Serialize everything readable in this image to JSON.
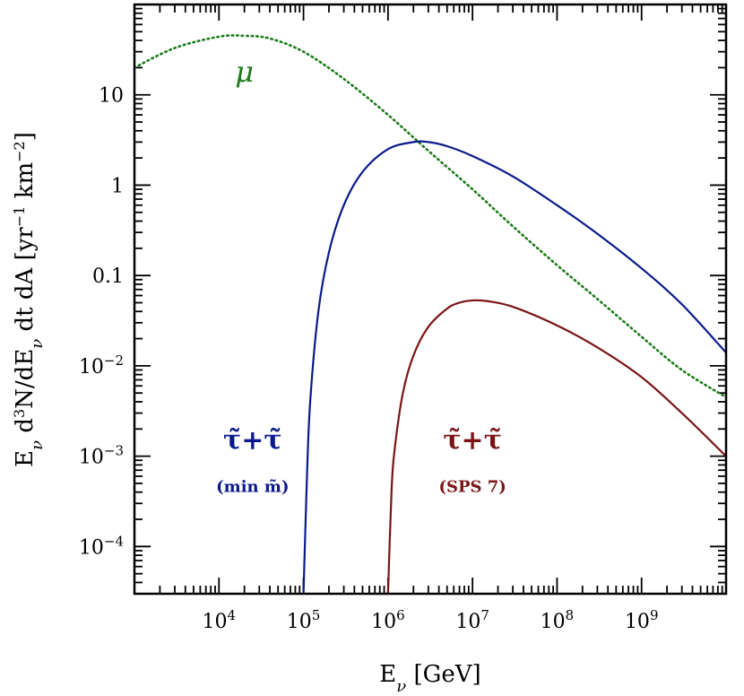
{
  "chart_data": {
    "type": "line",
    "xscale": "log",
    "yscale": "log",
    "xlim": [
      1000,
      10000000000
    ],
    "ylim": [
      3e-05,
      100
    ],
    "xlabel": "E_ν [GeV]",
    "ylabel": "E_ν d³N/dE_ν dt dA [yr⁻¹ km⁻²]",
    "x_ticks": [
      {
        "value": 10000,
        "base": "10",
        "exp": "4"
      },
      {
        "value": 100000,
        "base": "10",
        "exp": "5"
      },
      {
        "value": 1000000,
        "base": "10",
        "exp": "6"
      },
      {
        "value": 10000000,
        "base": "10",
        "exp": "7"
      },
      {
        "value": 100000000,
        "base": "10",
        "exp": "8"
      },
      {
        "value": 1000000000,
        "base": "10",
        "exp": "9"
      }
    ],
    "y_ticks": [
      {
        "value": 0.0001,
        "base": "10",
        "exp": "−4"
      },
      {
        "value": 0.001,
        "base": "10",
        "exp": "−3"
      },
      {
        "value": 0.01,
        "base": "10",
        "exp": "−2"
      },
      {
        "value": 0.1,
        "base": "0.1",
        "exp": ""
      },
      {
        "value": 1,
        "base": "1",
        "exp": ""
      },
      {
        "value": 10,
        "base": "10",
        "exp": ""
      }
    ],
    "series": [
      {
        "name": "μ",
        "color": "#1a7a1a",
        "style": "dotted",
        "x": [
          1000,
          3000,
          10000,
          20000,
          40000,
          100000,
          300000,
          1000000,
          3000000,
          10000000,
          30000000,
          100000000,
          300000000,
          1000000000,
          3000000000,
          10000000000
        ],
        "y": [
          20,
          33,
          44,
          45,
          42,
          30,
          15,
          6,
          2.4,
          0.9,
          0.35,
          0.13,
          0.055,
          0.021,
          0.009,
          0.0045
        ]
      },
      {
        "name": "τ̃+τ̃ (min m̃)",
        "color": "#0a1a8c",
        "style": "solid",
        "x": [
          100000,
          110000,
          120000,
          150000,
          200000,
          300000,
          500000,
          1000000,
          2000000,
          3000000,
          5000000,
          10000000,
          30000000,
          100000000,
          300000000,
          1000000000,
          3000000000,
          10000000000
        ],
        "y": [
          3e-05,
          0.0006,
          0.004,
          0.04,
          0.18,
          0.6,
          1.4,
          2.5,
          3.0,
          3.0,
          2.7,
          2.1,
          1.25,
          0.6,
          0.29,
          0.12,
          0.048,
          0.014
        ]
      },
      {
        "name": "τ̃+τ̃ (SPS 7)",
        "color": "#7a1414",
        "style": "solid",
        "x": [
          1000000,
          1100000,
          1200000,
          1500000,
          2000000,
          3000000,
          5000000,
          7000000,
          10000000,
          15000000,
          30000000,
          100000000,
          300000000,
          1000000000,
          3000000000,
          10000000000
        ],
        "y": [
          3e-05,
          0.0004,
          0.0012,
          0.005,
          0.013,
          0.027,
          0.043,
          0.05,
          0.053,
          0.052,
          0.045,
          0.028,
          0.016,
          0.0075,
          0.003,
          0.001
        ]
      }
    ],
    "annotations": [
      {
        "id": "mu",
        "text": "μ",
        "color": "#1a7a1a",
        "x": 20000,
        "y": 14
      },
      {
        "id": "blue-main",
        "text": "τ̃+τ̃",
        "color": "#0a1a8c",
        "x": 25000,
        "y": 0.0012
      },
      {
        "id": "blue-sub",
        "text": "(min m̃)",
        "color": "#0a1a8c",
        "x": 25000,
        "y": 0.0004
      },
      {
        "id": "red-main",
        "text": "τ̃+τ̃",
        "color": "#7a1414",
        "x": 10000000,
        "y": 0.0012
      },
      {
        "id": "red-sub",
        "text": "(SPS 7)",
        "color": "#7a1414",
        "x": 10000000,
        "y": 0.0004
      }
    ]
  }
}
